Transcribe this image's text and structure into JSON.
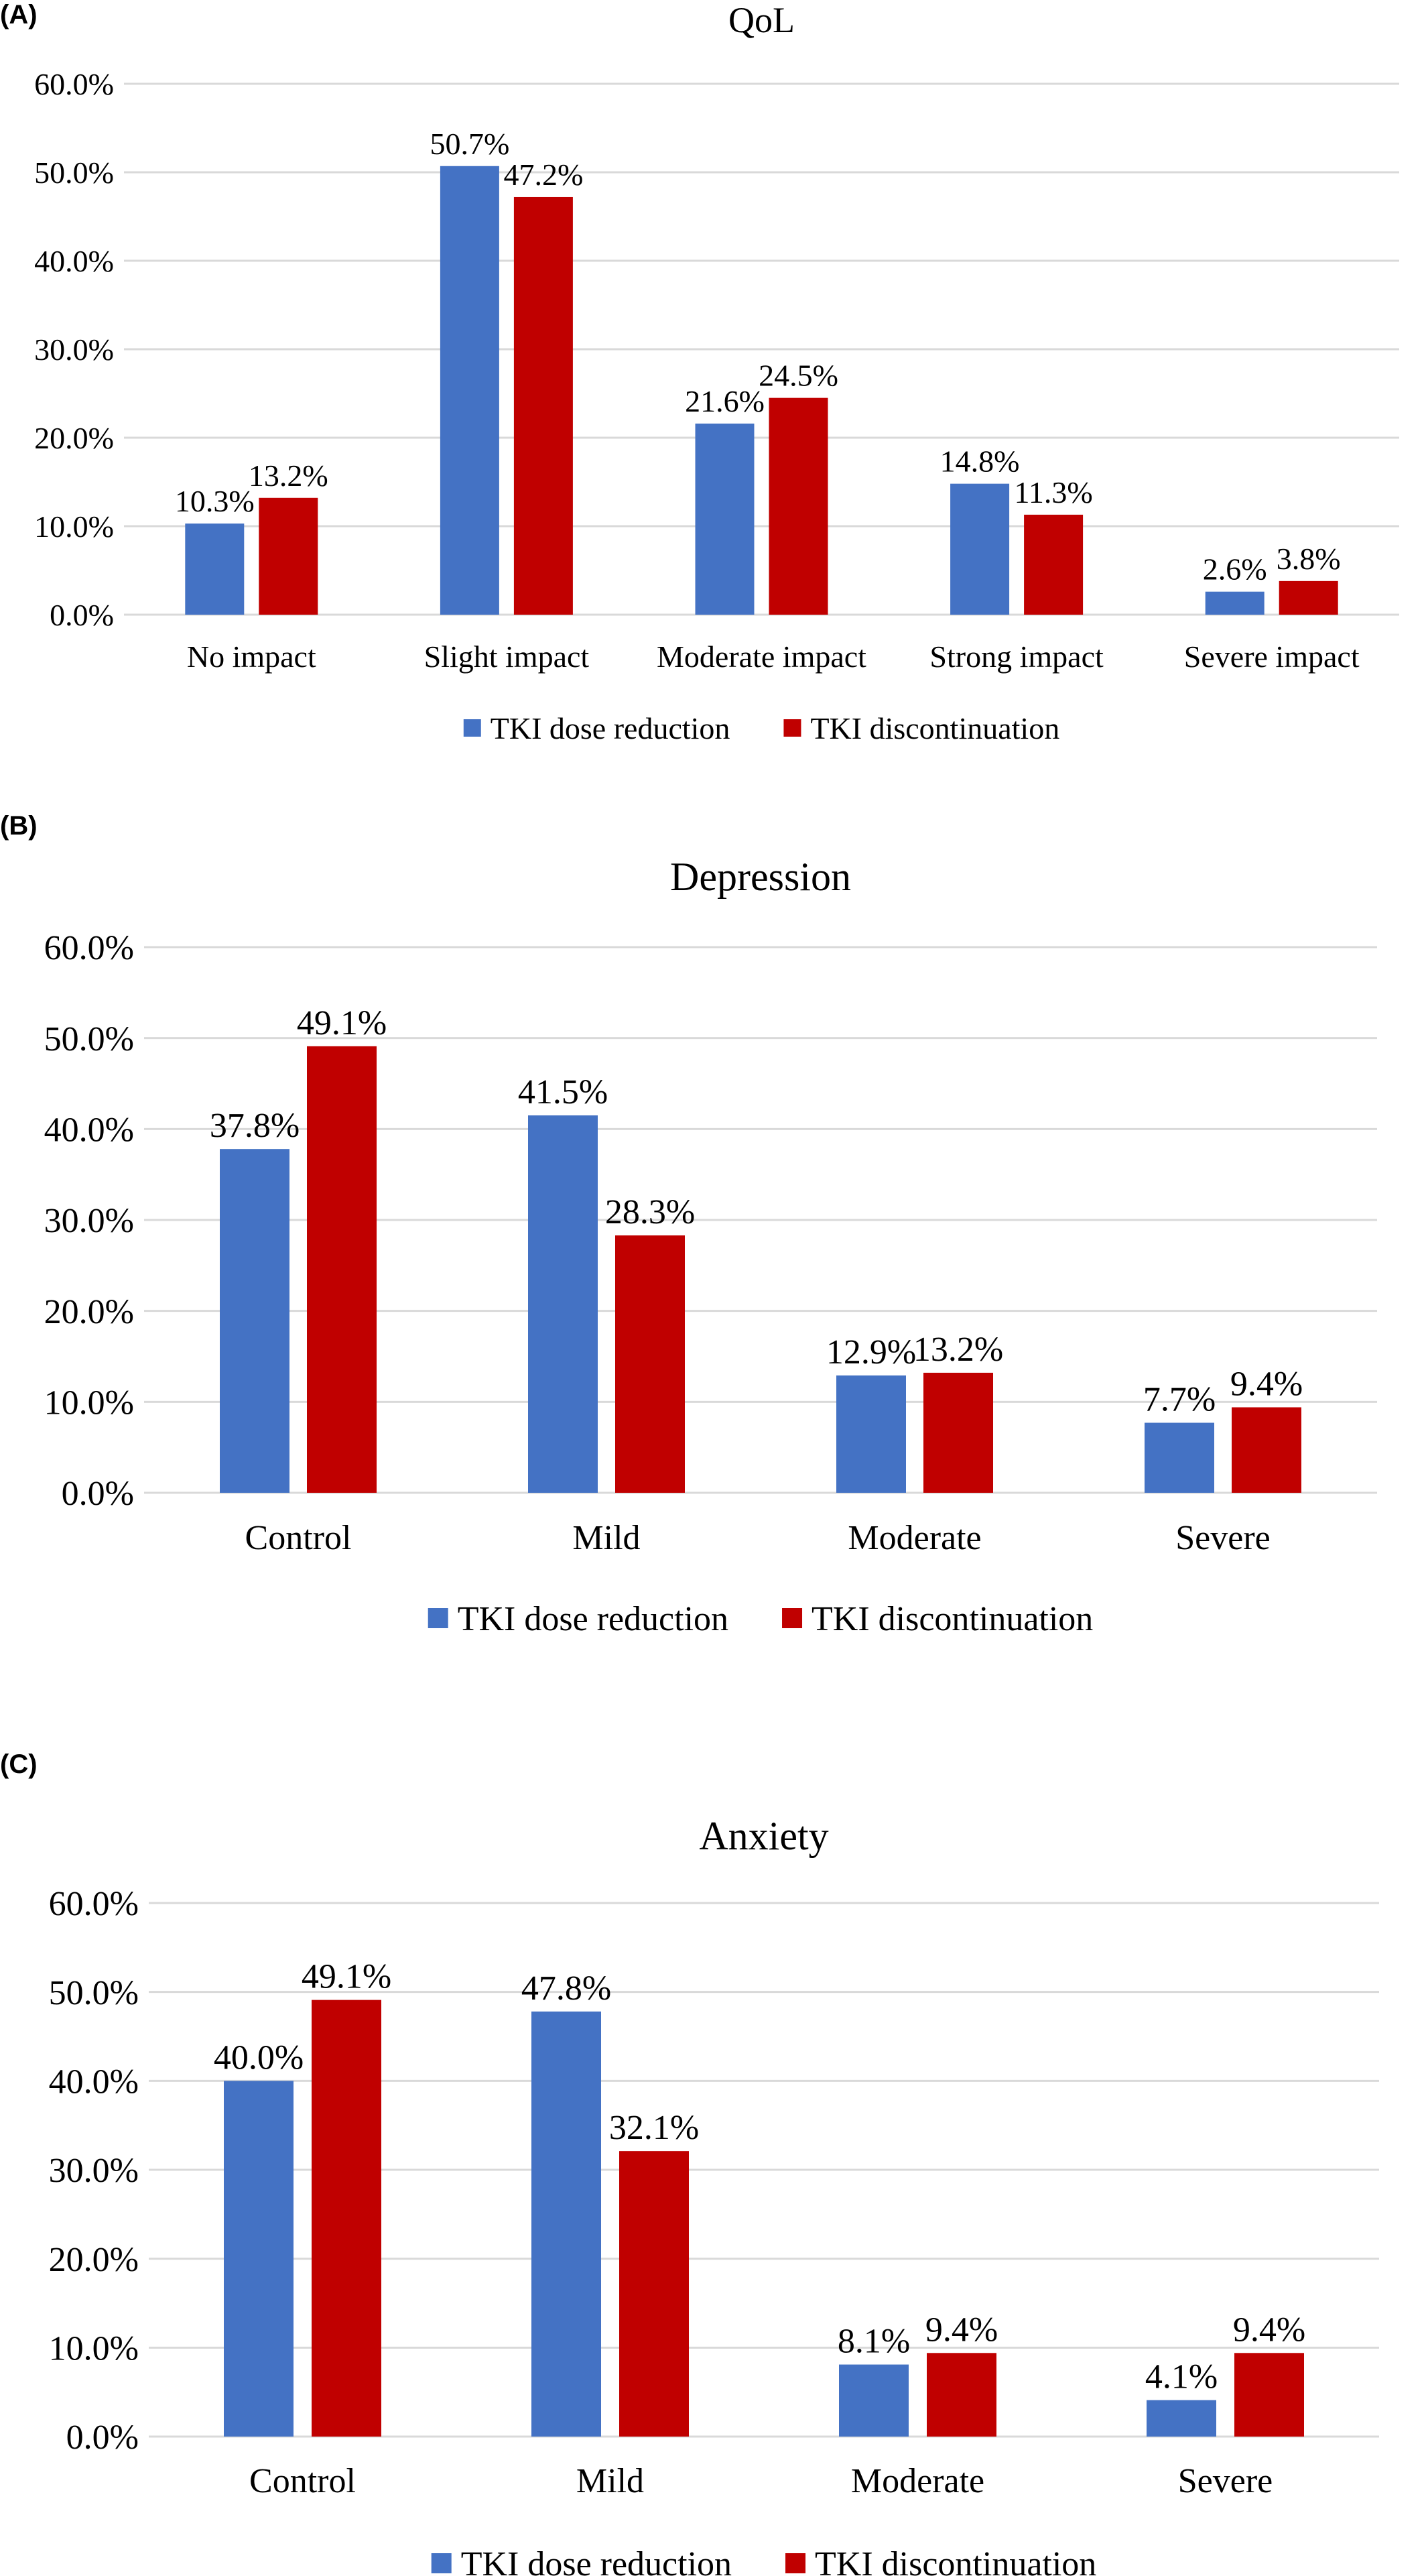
{
  "chart_data": [
    {
      "type": "bar",
      "panel": "(A)",
      "title": "QoL",
      "categories": [
        "No impact",
        "Slight impact",
        "Moderate impact",
        "Strong impact",
        "Severe impact"
      ],
      "series": [
        {
          "name": "TKI dose reduction",
          "color": "#4472C4",
          "values": [
            10.3,
            50.7,
            21.6,
            14.8,
            2.6
          ],
          "labels": [
            "10.3%",
            "50.7%",
            "21.6%",
            "14.8%",
            "2.6%"
          ]
        },
        {
          "name": "TKI discontinuation",
          "color": "#C00000",
          "values": [
            13.2,
            47.2,
            24.5,
            11.3,
            3.8
          ],
          "labels": [
            "13.2%",
            "47.2%",
            "24.5%",
            "11.3%",
            "3.8%"
          ]
        }
      ],
      "ylim": [
        0,
        60
      ],
      "yticks": [
        "0.0%",
        "10.0%",
        "20.0%",
        "30.0%",
        "40.0%",
        "50.0%",
        "60.0%"
      ],
      "grid": true,
      "legend": "bottom"
    },
    {
      "type": "bar",
      "panel": "(B)",
      "title": "Depression",
      "categories": [
        "Control",
        "Mild",
        "Moderate",
        "Severe"
      ],
      "series": [
        {
          "name": "TKI dose reduction",
          "color": "#4472C4",
          "values": [
            37.8,
            41.5,
            12.9,
            7.7
          ],
          "labels": [
            "37.8%",
            "41.5%",
            "12.9%",
            "7.7%"
          ]
        },
        {
          "name": "TKI discontinuation",
          "color": "#C00000",
          "values": [
            49.1,
            28.3,
            13.2,
            9.4
          ],
          "labels": [
            "49.1%",
            "28.3%",
            "13.2%",
            "9.4%"
          ]
        }
      ],
      "ylim": [
        0,
        60
      ],
      "yticks": [
        "0.0%",
        "10.0%",
        "20.0%",
        "30.0%",
        "40.0%",
        "50.0%",
        "60.0%"
      ],
      "grid": true,
      "legend": "bottom"
    },
    {
      "type": "bar",
      "panel": "(C)",
      "title": "Anxiety",
      "categories": [
        "Control",
        "Mild",
        "Moderate",
        "Severe"
      ],
      "series": [
        {
          "name": "TKI dose reduction",
          "color": "#4472C4",
          "values": [
            40.0,
            47.8,
            8.1,
            4.1
          ],
          "labels": [
            "40.0%",
            "47.8%",
            "8.1%",
            "4.1%"
          ]
        },
        {
          "name": "TKI discontinuation",
          "color": "#C00000",
          "values": [
            49.1,
            32.1,
            9.4,
            9.4
          ],
          "labels": [
            "49.1%",
            "32.1%",
            "9.4%",
            "9.4%"
          ]
        }
      ],
      "ylim": [
        0,
        60
      ],
      "yticks": [
        "0.0%",
        "10.0%",
        "20.0%",
        "30.0%",
        "40.0%",
        "50.0%",
        "60.0%"
      ],
      "grid": true,
      "legend": "bottom"
    }
  ]
}
